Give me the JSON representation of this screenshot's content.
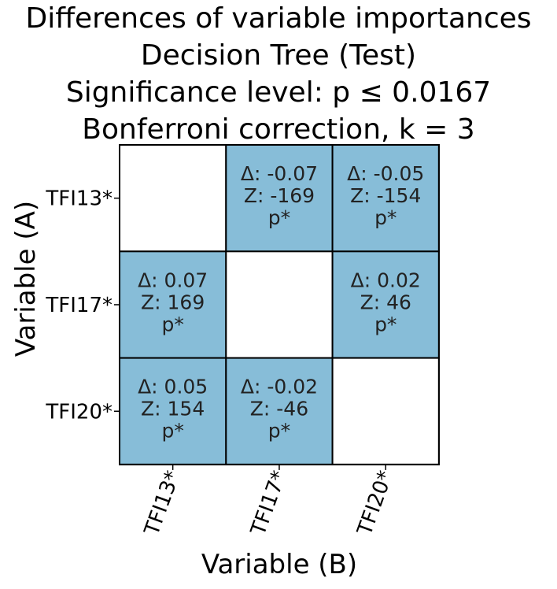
{
  "chart_data": {
    "type": "heatmap",
    "title_lines": [
      "Differences of variable importances",
      "Decision Tree (Test)",
      "Significance level: p ≤  0.0167",
      "Bonferroni correction, k = 3"
    ],
    "xlabel": "Variable (B)",
    "ylabel": "Variable (A)",
    "row_labels": [
      "TFI13*",
      "TFI17*",
      "TFI20*"
    ],
    "col_labels": [
      "TFI13*",
      "TFI17*",
      "TFI20*"
    ],
    "cells": [
      [
        null,
        {
          "delta": "-0.07",
          "z": "-169",
          "p": "p*"
        },
        {
          "delta": "-0.05",
          "z": "-154",
          "p": "p*"
        }
      ],
      [
        {
          "delta": "0.07",
          "z": "169",
          "p": "p*"
        },
        null,
        {
          "delta": "0.02",
          "z": "46",
          "p": "p*"
        }
      ],
      [
        {
          "delta": "0.05",
          "z": "154",
          "p": "p*"
        },
        {
          "delta": "-0.02",
          "z": "-46",
          "p": "p*"
        },
        null
      ]
    ],
    "delta_prefix": "Δ: ",
    "z_prefix": "Z: ",
    "colors": {
      "significant": "#87bdd8",
      "empty": "#ffffff",
      "grid": "#000000",
      "text": "#222222"
    }
  }
}
